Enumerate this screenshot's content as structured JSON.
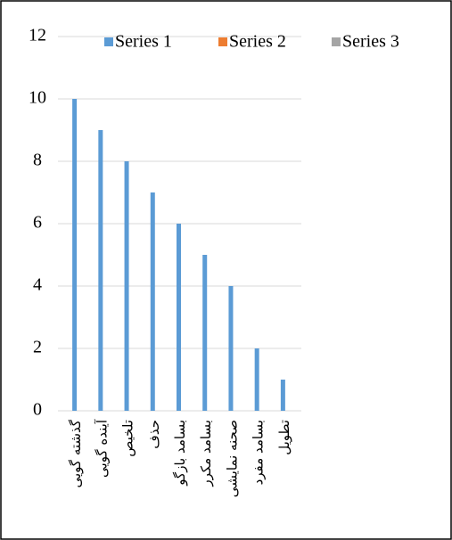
{
  "chart_data": {
    "type": "bar",
    "categories": [
      "گذشته گویی",
      "آینده گویی",
      "تلخیص",
      "حذف",
      "بسامد بازگو",
      "بسامد مکرر",
      "صحنه نمایشی",
      "بسامد مفرد",
      "تطویل"
    ],
    "series": [
      {
        "name": "Series 1",
        "color": "#5b9bd5",
        "values": [
          10,
          9,
          8,
          7,
          6,
          5,
          4,
          2,
          1
        ]
      },
      {
        "name": "Series 2",
        "color": "#ed7d31",
        "values": [
          null,
          null,
          null,
          null,
          null,
          null,
          null,
          null,
          null
        ]
      },
      {
        "name": "Series 3",
        "color": "#a5a5a5",
        "values": [
          null,
          null,
          null,
          null,
          null,
          null,
          null,
          null,
          null
        ]
      }
    ],
    "ylim": [
      0,
      12
    ],
    "yticks": [
      0,
      2,
      4,
      6,
      8,
      10,
      12
    ],
    "grid": true,
    "legend": "top"
  }
}
